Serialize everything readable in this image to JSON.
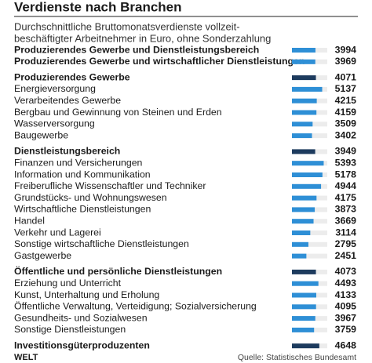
{
  "chart_data": {
    "type": "bar",
    "orientation": "horizontal",
    "title": "Verdienste nach Branchen",
    "subtitle": [
      "Durchschnittliche Bruttomonatsverdienste vollzeit-",
      "beschäftigter Arbeitnehmer in Euro, ohne Sonderzahlung"
    ],
    "xlim": [
      0,
      6000
    ],
    "color": "#2e8fd6",
    "header_color": "#1d3b5e",
    "track_color": "#ececec",
    "groups": [
      {
        "bold": true,
        "categories": [
          "Produzierendes Gewerbe und Dienstleistungsbereich",
          "Produzierendes Gewerbe und wirtschaftlicher Dienstleistungen"
        ],
        "values": [
          3994,
          3969
        ]
      },
      {
        "header": {
          "label": "Produzierendes Gewerbe",
          "value": 4071
        },
        "categories": [
          "Energieversorgung",
          "Verarbeitendes Gewerbe",
          "Bergbau und Gewinnung von Steinen und Erden",
          "Wasserversorgung",
          "Baugewerbe"
        ],
        "values": [
          5137,
          4215,
          4159,
          3509,
          3402
        ]
      },
      {
        "header": {
          "label": "Dienstleistungsbereich",
          "value": 3949
        },
        "categories": [
          "Finanzen und Versicherungen",
          "Information und Kommunikation",
          "Freiberufliche Wissenschaftler und Techniker",
          "Grundstücks- und Wohnungswesen",
          "Wirtschaftliche Dienstleistungen",
          "Handel",
          "Verkehr und Lagerei",
          "Sonstige wirtschaftliche Dienstleistungen",
          "Gastgewerbe"
        ],
        "values": [
          5393,
          5178,
          4944,
          4175,
          3873,
          3669,
          3114,
          2795,
          2451
        ]
      },
      {
        "header": {
          "label": "Öffentliche und persönliche Dienstleistungen",
          "value": 4073
        },
        "categories": [
          "Erziehung und Unterricht",
          "Kunst, Unterhaltung und Erholung",
          "Öffentliche Verwaltung, Verteidigung; Sozialversicherung",
          "Gesundheits- und Sozialwesen",
          "Sonstige Dienstleistungen"
        ],
        "values": [
          4493,
          4133,
          4095,
          3967,
          3759
        ]
      },
      {
        "header": {
          "label": "Investitionsgüterproduzenten",
          "value": 4648
        },
        "categories": [],
        "values": []
      }
    ],
    "logo": "WELT",
    "source": "Quelle: Statistisches Bundesamt"
  }
}
